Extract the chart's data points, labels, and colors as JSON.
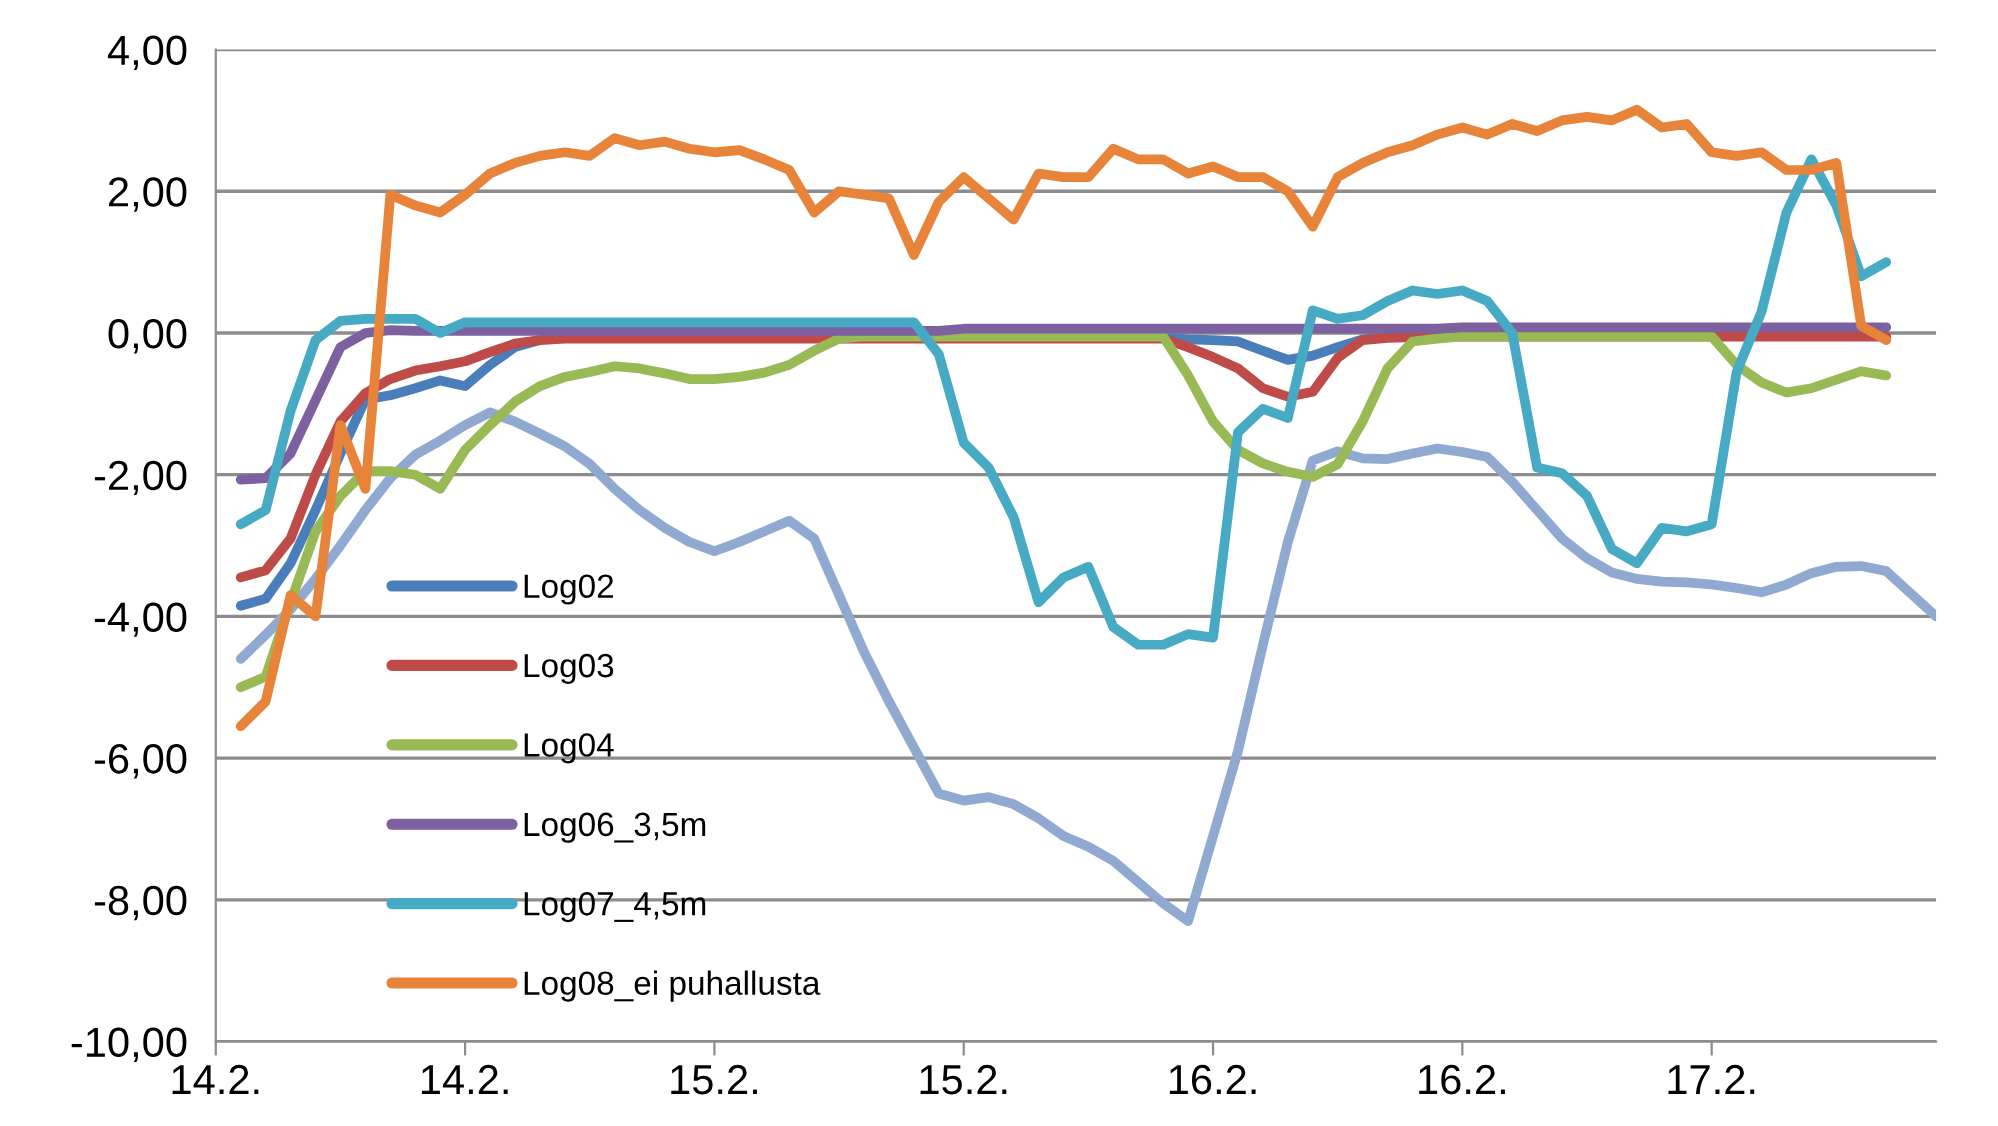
{
  "chart_data": {
    "type": "line",
    "categories": [
      "14.2.",
      null,
      null,
      null,
      null,
      null,
      null,
      null,
      null,
      null,
      "14.2.",
      null,
      null,
      null,
      null,
      null,
      null,
      null,
      null,
      null,
      "15.2.",
      null,
      null,
      null,
      null,
      null,
      null,
      null,
      null,
      null,
      "15.2.",
      null,
      null,
      null,
      null,
      null,
      null,
      null,
      null,
      null,
      "16.2.",
      null,
      null,
      null,
      null,
      null,
      null,
      null,
      null,
      null,
      "16.2.",
      null,
      null,
      null,
      null,
      null,
      null,
      null,
      null,
      null,
      "17.2.",
      null,
      null,
      null,
      null,
      null,
      null,
      null,
      null,
      null
    ],
    "ylim": [
      -10,
      4
    ],
    "yticks": [
      {
        "value": -10,
        "label": "-10,00"
      },
      {
        "value": -8,
        "label": "-8,00"
      },
      {
        "value": -6,
        "label": "-6,00"
      },
      {
        "value": -4,
        "label": "-4,00"
      },
      {
        "value": -2,
        "label": "-2,00"
      },
      {
        "value": 0,
        "label": "0,00"
      },
      {
        "value": 2,
        "label": "2,00"
      },
      {
        "value": 4,
        "label": "4,00"
      }
    ],
    "grid": "y",
    "legend": "bottom left",
    "marker": "none",
    "line_style": "solid",
    "series": [
      {
        "name": null,
        "color": "#8fa9d0",
        "values": [
          null,
          -4.6,
          -4.26,
          -3.9,
          -3.47,
          -3.0,
          -2.5,
          -2.05,
          -1.72,
          -1.52,
          -1.3,
          -1.12,
          -1.25,
          -1.42,
          -1.6,
          -1.85,
          -2.2,
          -2.5,
          -2.75,
          -2.95,
          -3.08,
          -2.95,
          -2.8,
          -2.65,
          -2.9,
          -3.7,
          -4.5,
          -5.2,
          -5.85,
          -6.5,
          -6.6,
          -6.55,
          -6.65,
          -6.85,
          -7.1,
          -7.25,
          -7.45,
          -7.75,
          -8.05,
          -8.3,
          -7.1,
          -5.9,
          -4.4,
          -2.95,
          -1.8,
          -1.67,
          -1.77,
          -1.78,
          -1.7,
          -1.63,
          -1.68,
          -1.75,
          -2.1,
          -2.5,
          -2.9,
          -3.18,
          -3.38,
          -3.47,
          -3.51,
          -3.52,
          -3.55,
          -3.6,
          -3.66,
          -3.55,
          -3.39,
          -3.3,
          -3.29,
          -3.36,
          -3.68,
          -4.0
        ]
      },
      {
        "name": "Log02",
        "color": "#4a7ebb",
        "values": [
          null,
          -3.85,
          -3.75,
          -3.25,
          -2.5,
          -1.7,
          -0.94,
          -0.88,
          -0.78,
          -0.67,
          -0.75,
          -0.45,
          -0.2,
          -0.1,
          null,
          null,
          null,
          null,
          null,
          null,
          null,
          null,
          null,
          null,
          null,
          null,
          null,
          null,
          null,
          null,
          null,
          null,
          null,
          null,
          null,
          null,
          null,
          null,
          -0.07,
          -0.09,
          -0.1,
          -0.12,
          -0.25,
          -0.38,
          -0.32,
          -0.2,
          -0.09,
          -0.06,
          null,
          null,
          null,
          null,
          null,
          null,
          null,
          null,
          null,
          null,
          null,
          null,
          null,
          null,
          null,
          null,
          null,
          null,
          null,
          null,
          null,
          null
        ]
      },
      {
        "name": "Log03",
        "color": "#be4b48",
        "values": [
          null,
          -3.45,
          -3.35,
          -2.9,
          -2.0,
          -1.25,
          -0.85,
          -0.65,
          -0.53,
          -0.47,
          -0.4,
          -0.27,
          -0.15,
          -0.1,
          -0.08,
          -0.08,
          -0.08,
          -0.08,
          -0.08,
          -0.08,
          -0.08,
          -0.08,
          -0.08,
          -0.08,
          -0.08,
          -0.08,
          -0.08,
          -0.08,
          -0.08,
          -0.08,
          -0.08,
          -0.08,
          -0.08,
          -0.08,
          -0.08,
          -0.08,
          -0.08,
          -0.08,
          -0.08,
          -0.2,
          -0.34,
          -0.5,
          -0.78,
          -0.9,
          -0.83,
          -0.35,
          -0.1,
          -0.07,
          -0.06,
          -0.05,
          -0.05,
          -0.05,
          -0.05,
          -0.05,
          -0.05,
          -0.05,
          -0.05,
          -0.05,
          -0.05,
          -0.05,
          -0.05,
          -0.05,
          -0.05,
          -0.05,
          -0.05,
          -0.05,
          -0.05,
          -0.05,
          null,
          null
        ]
      },
      {
        "name": "Log04",
        "color": "#98b954",
        "values": [
          null,
          -5.0,
          -4.85,
          -3.8,
          -2.8,
          -2.3,
          -1.95,
          -1.95,
          -2.0,
          -2.2,
          -1.65,
          -1.3,
          -0.97,
          -0.75,
          -0.62,
          -0.55,
          -0.47,
          -0.5,
          -0.57,
          -0.65,
          -0.65,
          -0.62,
          -0.56,
          -0.45,
          -0.25,
          -0.08,
          -0.05,
          -0.05,
          -0.05,
          -0.05,
          -0.05,
          -0.05,
          -0.05,
          -0.05,
          -0.05,
          -0.05,
          -0.05,
          -0.05,
          -0.05,
          -0.6,
          -1.25,
          -1.65,
          -1.84,
          -1.96,
          -2.03,
          -1.85,
          -1.25,
          -0.5,
          -0.12,
          -0.08,
          -0.05,
          -0.05,
          -0.05,
          -0.05,
          -0.05,
          -0.05,
          -0.05,
          -0.05,
          -0.05,
          -0.05,
          -0.05,
          -0.45,
          -0.7,
          -0.84,
          -0.78,
          -0.66,
          -0.54,
          -0.6,
          null,
          null
        ]
      },
      {
        "name": "Log06_3,5m",
        "color": "#7d60a0",
        "values": [
          null,
          -2.07,
          -2.05,
          -1.7,
          -0.95,
          -0.2,
          0.0,
          0.04,
          0.03,
          0.03,
          0.03,
          0.03,
          0.03,
          0.03,
          0.03,
          0.03,
          0.03,
          0.03,
          0.03,
          0.03,
          0.03,
          0.03,
          0.03,
          0.03,
          0.03,
          0.03,
          0.03,
          0.03,
          0.03,
          0.03,
          0.06,
          0.06,
          0.06,
          0.06,
          0.06,
          0.06,
          0.06,
          0.06,
          0.06,
          0.06,
          0.06,
          0.06,
          0.06,
          0.06,
          0.06,
          0.06,
          0.06,
          0.06,
          0.06,
          0.06,
          0.08,
          0.08,
          0.08,
          0.08,
          0.08,
          0.08,
          0.08,
          0.08,
          0.08,
          0.08,
          0.08,
          0.08,
          0.08,
          0.08,
          0.08,
          0.08,
          0.08,
          0.08,
          null,
          null
        ]
      },
      {
        "name": "Log07_4,5m",
        "color": "#46aac5",
        "values": [
          null,
          -2.7,
          -2.5,
          -1.1,
          -0.1,
          0.17,
          0.2,
          0.2,
          0.2,
          0.0,
          0.15,
          0.15,
          0.15,
          0.15,
          0.15,
          0.15,
          0.15,
          0.15,
          0.15,
          0.15,
          0.15,
          0.15,
          0.15,
          0.15,
          0.15,
          0.15,
          0.15,
          0.15,
          0.15,
          -0.3,
          -1.55,
          -1.9,
          -2.6,
          -3.8,
          -3.45,
          -3.3,
          -4.15,
          -4.4,
          -4.4,
          -4.25,
          -4.3,
          -1.4,
          -1.07,
          -1.2,
          0.32,
          0.2,
          0.25,
          0.45,
          0.6,
          0.55,
          0.6,
          0.45,
          0.0,
          -1.9,
          -1.98,
          -2.3,
          -3.05,
          -3.25,
          -2.75,
          -2.8,
          -2.7,
          -0.55,
          0.3,
          1.7,
          2.45,
          1.8,
          0.8,
          1.0,
          null,
          null
        ]
      },
      {
        "name": "Log08_ei puhallusta",
        "color": "#e8843a",
        "values": [
          null,
          -5.55,
          -5.2,
          -3.7,
          -4.0,
          -1.3,
          -2.2,
          1.95,
          1.8,
          1.7,
          1.95,
          2.25,
          2.4,
          2.5,
          2.55,
          2.5,
          2.75,
          2.65,
          2.7,
          2.6,
          2.55,
          2.58,
          2.45,
          2.3,
          1.7,
          2.0,
          1.95,
          1.9,
          1.1,
          1.85,
          2.2,
          1.9,
          1.6,
          2.25,
          2.2,
          2.2,
          2.6,
          2.45,
          2.45,
          2.25,
          2.35,
          2.2,
          2.2,
          2.0,
          1.5,
          2.2,
          2.4,
          2.55,
          2.65,
          2.8,
          2.9,
          2.8,
          2.95,
          2.85,
          3.0,
          3.05,
          3.0,
          3.15,
          2.9,
          2.95,
          2.55,
          2.5,
          2.55,
          2.3,
          2.3,
          2.4,
          0.1,
          -0.1,
          null,
          null
        ]
      }
    ]
  }
}
